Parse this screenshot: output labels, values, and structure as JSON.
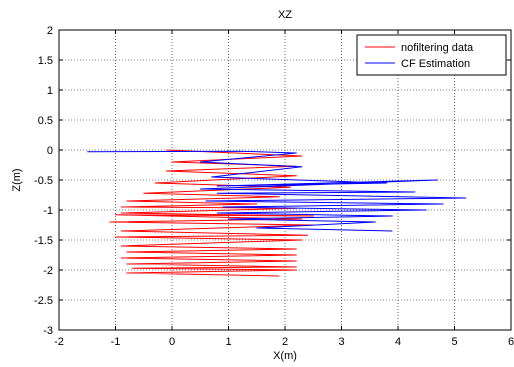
{
  "chart_data": {
    "type": "line",
    "title": "XZ",
    "xlabel": "X(m)",
    "ylabel": "Z(m)",
    "xlim": [
      -2,
      6
    ],
    "ylim": [
      -3,
      2
    ],
    "xticks": [
      "-2",
      "-1",
      "0",
      "1",
      "2",
      "3",
      "4",
      "5",
      "6"
    ],
    "yticks": [
      "-3",
      "-2.5",
      "-2",
      "-1.5",
      "-1",
      "-0.5",
      "0",
      "0.5",
      "1",
      "1.5",
      "2"
    ],
    "grid": true,
    "legend_position": "top-right",
    "series": [
      {
        "name": "nofiltering data",
        "color": "#ff0000",
        "x": [
          -0.1,
          2.3,
          0.0,
          2.2,
          -0.1,
          2.2,
          -0.3,
          2.1,
          -0.5,
          1.9,
          -0.8,
          1.5,
          -0.9,
          2.2,
          -0.9,
          2.5,
          -1.0,
          2.3,
          -1.1,
          2.5,
          -0.9,
          2.4,
          -1.0,
          2.3,
          -0.9,
          2.2,
          -0.8,
          2.2,
          -0.9,
          2.2,
          -0.8,
          2.2,
          -0.7,
          2.2,
          -0.8,
          1.9
        ],
        "y": [
          0.0,
          -0.1,
          -0.2,
          -0.27,
          -0.35,
          -0.43,
          -0.55,
          -0.62,
          -0.72,
          -0.78,
          -0.85,
          -0.9,
          -0.95,
          -0.97,
          -1.05,
          -1.1,
          -1.08,
          -1.15,
          -1.2,
          -1.25,
          -1.35,
          -1.42,
          -1.45,
          -1.5,
          -1.6,
          -1.65,
          -1.7,
          -1.75,
          -1.8,
          -1.85,
          -1.9,
          -1.95,
          -1.97,
          -2.0,
          -2.05,
          -2.1
        ]
      },
      {
        "name": "CF Estimation",
        "color": "#0000ff",
        "x": [
          -1.5,
          1.2,
          2.2,
          0.5,
          2.3,
          0.7,
          3.8,
          0.8,
          4.7,
          0.5,
          4.3,
          0.8,
          5.2,
          0.6,
          4.8,
          0.9,
          4.5,
          0.8,
          3.9,
          1.0,
          3.6,
          1.5,
          3.9
        ],
        "y": [
          -0.03,
          -0.02,
          -0.05,
          -0.2,
          -0.28,
          -0.45,
          -0.55,
          -0.6,
          -0.5,
          -0.65,
          -0.7,
          -0.72,
          -0.8,
          -0.85,
          -0.9,
          -0.95,
          -1.0,
          -1.05,
          -1.1,
          -1.15,
          -1.2,
          -1.3,
          -1.35
        ]
      }
    ]
  }
}
